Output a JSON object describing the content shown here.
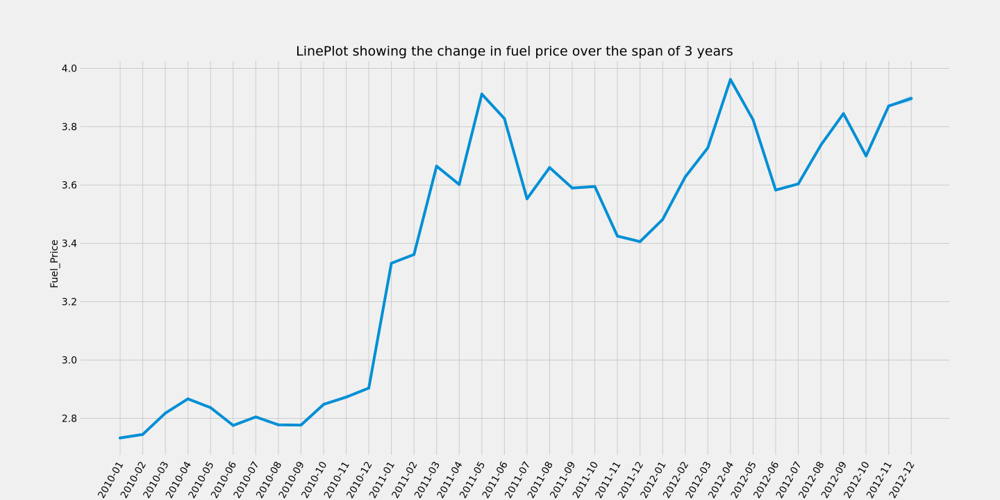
{
  "chart_data": {
    "type": "line",
    "title": "LinePlot showing the change in fuel price over the span of 3 years",
    "xlabel": "",
    "ylabel": "Fuel_Price",
    "ylim": [
      2.675,
      4.025
    ],
    "yticks": [
      "2.8",
      "3.0",
      "3.2",
      "3.4",
      "3.6",
      "3.8",
      "4.0"
    ],
    "grid": true,
    "categories": [
      "2010-01",
      "2010-02",
      "2010-03",
      "2010-04",
      "2010-05",
      "2010-06",
      "2010-07",
      "2010-08",
      "2010-09",
      "2010-10",
      "2010-11",
      "2010-12",
      "2011-01",
      "2011-02",
      "2011-03",
      "2011-04",
      "2011-05",
      "2011-06",
      "2011-07",
      "2011-08",
      "2011-09",
      "2011-10",
      "2011-11",
      "2011-12",
      "2012-01",
      "2012-02",
      "2012-03",
      "2012-04",
      "2012-05",
      "2012-06",
      "2012-07",
      "2012-08",
      "2012-09",
      "2012-10",
      "2012-11",
      "2012-12"
    ],
    "series": [
      {
        "values": [
          2.733,
          2.745,
          2.818,
          2.867,
          2.837,
          2.776,
          2.805,
          2.778,
          2.777,
          2.848,
          2.873,
          2.904,
          3.332,
          3.362,
          3.665,
          3.602,
          3.912,
          3.828,
          3.553,
          3.66,
          3.59,
          3.595,
          3.425,
          3.406,
          3.482,
          3.628,
          3.728,
          3.962,
          3.824,
          3.583,
          3.604,
          3.737,
          3.845,
          3.7,
          3.871,
          3.897
        ],
        "color": "#008fd5"
      }
    ]
  }
}
